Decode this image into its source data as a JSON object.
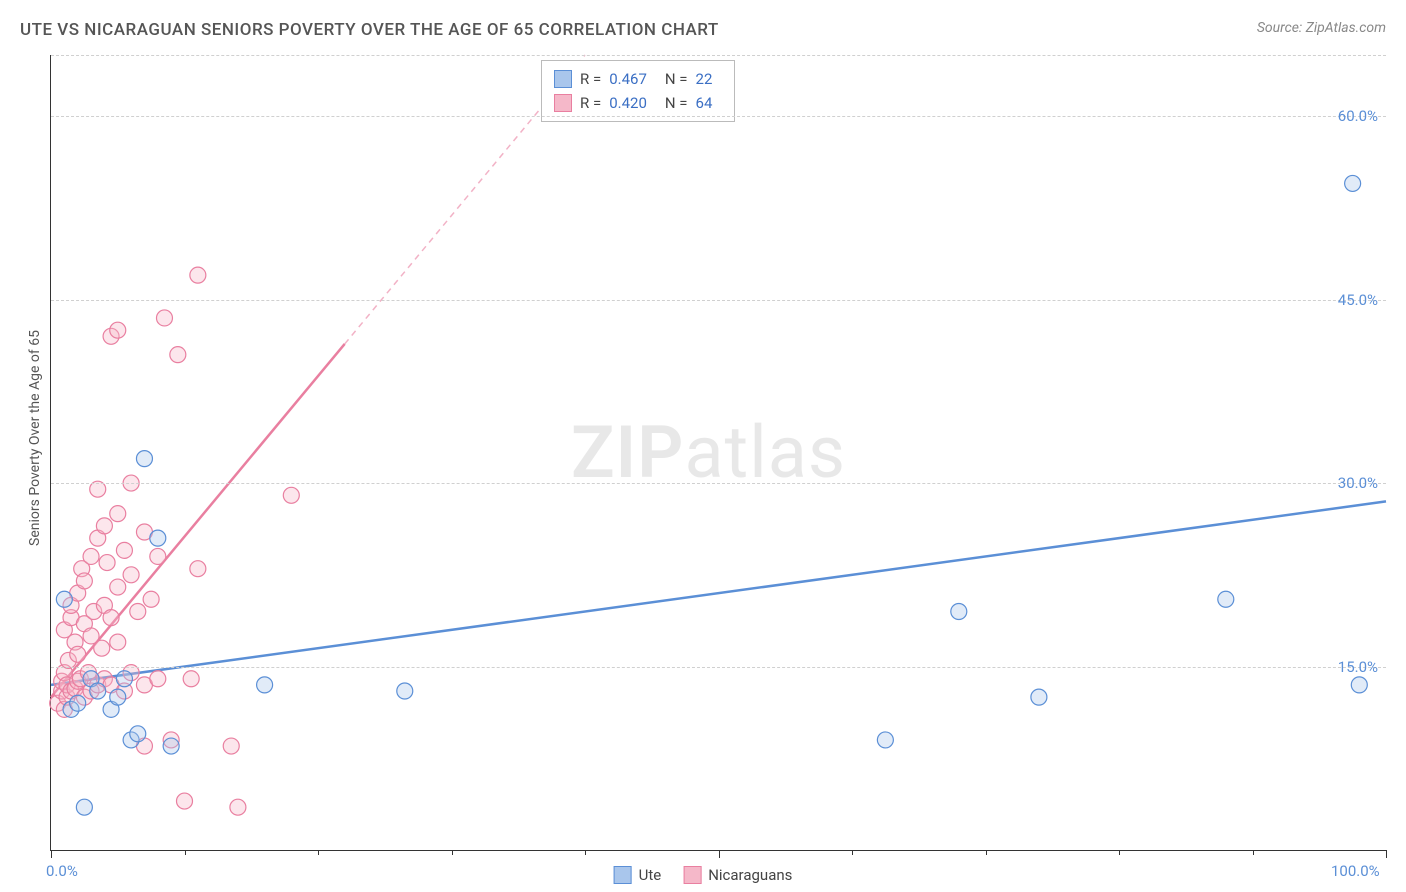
{
  "title": "UTE VS NICARAGUAN SENIORS POVERTY OVER THE AGE OF 65 CORRELATION CHART",
  "source": "Source: ZipAtlas.com",
  "ylabel": "Seniors Poverty Over the Age of 65",
  "watermark_bold": "ZIP",
  "watermark_light": "atlas",
  "chart": {
    "type": "scatter",
    "xlim": [
      0,
      100
    ],
    "ylim": [
      0,
      65
    ],
    "x_ticks_major": [
      0,
      50,
      100
    ],
    "x_ticks_minor": [
      10,
      20,
      30,
      40,
      60,
      70,
      80,
      90
    ],
    "x_tick_labels": {
      "0": "0.0%",
      "100": "100.0%"
    },
    "y_gridlines": [
      15,
      30,
      45,
      60,
      65
    ],
    "y_tick_labels": {
      "15": "15.0%",
      "30": "30.0%",
      "45": "45.0%",
      "60": "60.0%"
    },
    "background_color": "#ffffff",
    "grid_color": "#d0d0d0",
    "axis_color": "#333333",
    "marker_radius": 8,
    "marker_stroke_width": 1.2,
    "marker_fill_opacity": 0.35,
    "trend_line_width": 2.5,
    "trend_dash": "6,5"
  },
  "series": [
    {
      "name": "Ute",
      "color_stroke": "#5b8fd6",
      "color_fill": "#a9c6ec",
      "R": "0.467",
      "N": "22",
      "trend": {
        "x1": 0,
        "y1": 13.5,
        "x2": 100,
        "y2": 28.5,
        "solid_until_x": 100
      },
      "points": [
        [
          1.0,
          20.5
        ],
        [
          1.5,
          11.5
        ],
        [
          2.0,
          12.0
        ],
        [
          2.5,
          3.5
        ],
        [
          3.0,
          14.0
        ],
        [
          3.5,
          13.0
        ],
        [
          4.5,
          11.5
        ],
        [
          5.0,
          12.5
        ],
        [
          5.5,
          14.0
        ],
        [
          6.0,
          9.0
        ],
        [
          6.5,
          9.5
        ],
        [
          7.0,
          32.0
        ],
        [
          8.0,
          25.5
        ],
        [
          9.0,
          8.5
        ],
        [
          16.0,
          13.5
        ],
        [
          26.5,
          13.0
        ],
        [
          62.5,
          9.0
        ],
        [
          68.0,
          19.5
        ],
        [
          74.0,
          12.5
        ],
        [
          88.0,
          20.5
        ],
        [
          97.5,
          54.5
        ],
        [
          98.0,
          13.5
        ]
      ]
    },
    {
      "name": "Nicaraguans",
      "color_stroke": "#e97fa0",
      "color_fill": "#f5b8c9",
      "R": "0.420",
      "N": "64",
      "trend": {
        "x1": 0,
        "y1": 12.5,
        "x2": 40,
        "y2": 65,
        "solid_until_x": 22
      },
      "points": [
        [
          0.5,
          12.0
        ],
        [
          0.8,
          13.0
        ],
        [
          0.8,
          13.8
        ],
        [
          1.0,
          11.5
        ],
        [
          1.0,
          14.5
        ],
        [
          1.0,
          18.0
        ],
        [
          1.2,
          12.5
        ],
        [
          1.2,
          13.5
        ],
        [
          1.3,
          15.5
        ],
        [
          1.5,
          13.0
        ],
        [
          1.5,
          19.0
        ],
        [
          1.5,
          20.0
        ],
        [
          1.8,
          13.2
        ],
        [
          1.8,
          17.0
        ],
        [
          2.0,
          13.8
        ],
        [
          2.0,
          16.0
        ],
        [
          2.0,
          21.0
        ],
        [
          2.2,
          14.0
        ],
        [
          2.3,
          23.0
        ],
        [
          2.5,
          12.5
        ],
        [
          2.5,
          18.5
        ],
        [
          2.5,
          22.0
        ],
        [
          2.8,
          14.5
        ],
        [
          3.0,
          13.0
        ],
        [
          3.0,
          17.5
        ],
        [
          3.0,
          24.0
        ],
        [
          3.2,
          19.5
        ],
        [
          3.5,
          13.5
        ],
        [
          3.5,
          25.5
        ],
        [
          3.5,
          29.5
        ],
        [
          3.8,
          16.5
        ],
        [
          4.0,
          14.0
        ],
        [
          4.0,
          20.0
        ],
        [
          4.0,
          26.5
        ],
        [
          4.2,
          23.5
        ],
        [
          4.5,
          13.5
        ],
        [
          4.5,
          19.0
        ],
        [
          4.5,
          42.0
        ],
        [
          5.0,
          17.0
        ],
        [
          5.0,
          21.5
        ],
        [
          5.0,
          27.5
        ],
        [
          5.0,
          42.5
        ],
        [
          5.5,
          13.0
        ],
        [
          5.5,
          24.5
        ],
        [
          6.0,
          14.5
        ],
        [
          6.0,
          22.5
        ],
        [
          6.0,
          30.0
        ],
        [
          6.5,
          19.5
        ],
        [
          7.0,
          8.5
        ],
        [
          7.0,
          13.5
        ],
        [
          7.0,
          26.0
        ],
        [
          7.5,
          20.5
        ],
        [
          8.0,
          14.0
        ],
        [
          8.0,
          24.0
        ],
        [
          8.5,
          43.5
        ],
        [
          9.0,
          9.0
        ],
        [
          9.5,
          40.5
        ],
        [
          10.0,
          4.0
        ],
        [
          10.5,
          14.0
        ],
        [
          11.0,
          23.0
        ],
        [
          11.0,
          47.0
        ],
        [
          13.5,
          8.5
        ],
        [
          14.0,
          3.5
        ],
        [
          18.0,
          29.0
        ]
      ]
    }
  ],
  "stats_legend": {
    "rows": [
      {
        "swatch_fill": "#a9c6ec",
        "swatch_stroke": "#5b8fd6",
        "R": "0.467",
        "N": "22"
      },
      {
        "swatch_fill": "#f5b8c9",
        "swatch_stroke": "#e97fa0",
        "R": "0.420",
        "N": "64"
      }
    ],
    "R_label": "R =",
    "N_label": "N ="
  },
  "bottom_legend": [
    {
      "swatch_fill": "#a9c6ec",
      "swatch_stroke": "#5b8fd6",
      "label": "Ute"
    },
    {
      "swatch_fill": "#f5b8c9",
      "swatch_stroke": "#e97fa0",
      "label": "Nicaraguans"
    }
  ]
}
